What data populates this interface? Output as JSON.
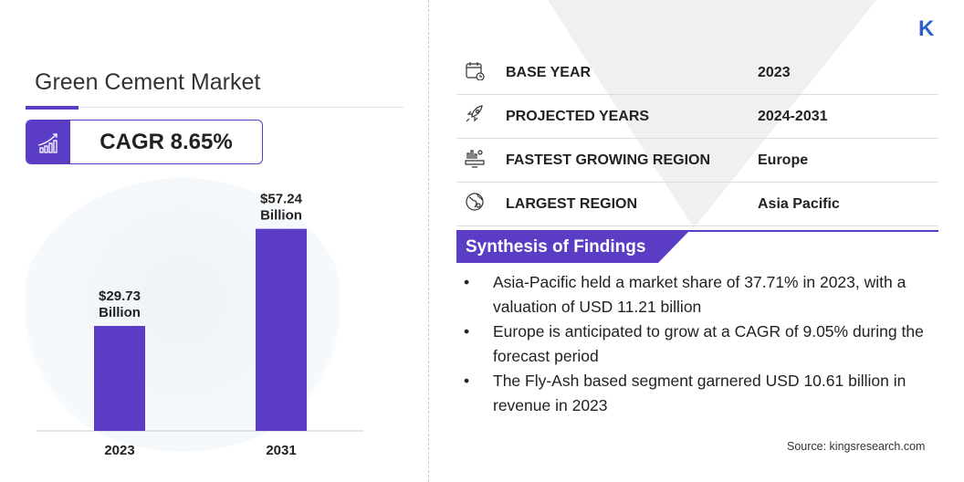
{
  "title": "Green Cement Market",
  "cagr": "CAGR 8.65%",
  "chart_data": {
    "type": "bar",
    "categories": [
      "2023",
      "2031"
    ],
    "values": [
      29.73,
      57.24
    ],
    "data_labels": [
      [
        "$29.73",
        "Billion"
      ],
      [
        "$57.24",
        "Billion"
      ]
    ],
    "ylim": [
      0,
      60
    ],
    "color": "#5b3cc4",
    "grid": false
  },
  "info_rows": [
    {
      "icon": "calendar-icon",
      "label": "BASE YEAR",
      "value": "2023"
    },
    {
      "icon": "rocket-icon",
      "label": "PROJECTED YEARS",
      "value": "2024-2031"
    },
    {
      "icon": "growth-region-icon",
      "label": "FASTEST GROWING REGION",
      "value": "Europe"
    },
    {
      "icon": "globe-icon",
      "label": "LARGEST REGION",
      "value": "Asia Pacific"
    }
  ],
  "synthesis_title": "Synthesis of Findings",
  "findings": [
    "Asia-Pacific held a market share of 37.71% in 2023, with a valuation of USD 11.21 billion",
    "Europe is anticipated to grow at a CAGR of 9.05% during the forecast period",
    "The Fly-Ash based segment garnered USD 10.61 billion in revenue in 2023"
  ],
  "source": "Source:  kingsresearch.com",
  "logo": "K",
  "accent": "#5b3cc4"
}
